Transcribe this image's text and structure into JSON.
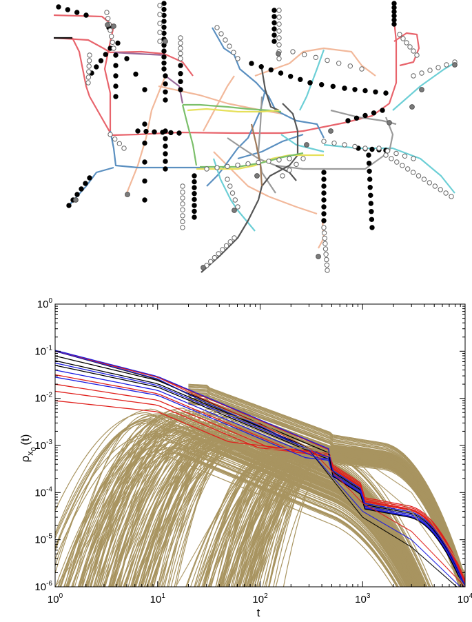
{
  "network_figure": {
    "description_colors": {
      "red": "#e8646c",
      "peach": "#f2b89a",
      "blue": "#5a8fc0",
      "cyan": "#6ccfd6",
      "gray": "#9a9a9a",
      "dark_gray": "#555555",
      "black": "#111111",
      "yellow": "#e6e05a",
      "green": "#7bbf6a",
      "purple": "#9a6a9a",
      "brown": "#a07a5a"
    },
    "node_fill_colors": {
      "black": "#000000",
      "white": "#ffffff",
      "gray": "#7a7a7a"
    }
  },
  "chart_data": {
    "type": "line",
    "xscale": "log",
    "yscale": "log",
    "xlim": [
      1,
      10000
    ],
    "ylim": [
      1e-06,
      1
    ],
    "xlabel": "t",
    "ylabel_main": "ρ",
    "ylabel_sub": "x",
    "ylabel_subsub": "0",
    "ylabel_arg": "(t)",
    "x_tick_labels": [
      {
        "base": "10",
        "exp": "0"
      },
      {
        "base": "10",
        "exp": "1"
      },
      {
        "base": "10",
        "exp": "2"
      },
      {
        "base": "10",
        "exp": "3"
      },
      {
        "base": "10",
        "exp": "4"
      }
    ],
    "y_tick_labels": [
      {
        "base": "10",
        "exp": "0"
      },
      {
        "base": "10",
        "exp": "-1"
      },
      {
        "base": "10",
        "exp": "-2"
      },
      {
        "base": "10",
        "exp": "-3"
      },
      {
        "base": "10",
        "exp": "-4"
      },
      {
        "base": "10",
        "exp": "-5"
      },
      {
        "base": "10",
        "exp": "-6"
      }
    ],
    "series_colors": {
      "khaki": "#a89460",
      "red": "#e0201c",
      "blue": "#1c1ce0",
      "black": "#000000"
    },
    "representative_series": [
      {
        "color": "black",
        "points": [
          [
            1,
            0.1
          ],
          [
            10,
            0.025
          ],
          [
            30,
            0.008
          ],
          [
            100,
            0.0025
          ],
          [
            300,
            0.0008
          ],
          [
            1000,
            3e-05
          ],
          [
            3000,
            7e-06
          ],
          [
            10000,
            7e-07
          ]
        ]
      },
      {
        "color": "red",
        "points": [
          [
            1,
            0.1
          ],
          [
            10,
            0.028
          ],
          [
            30,
            0.009
          ],
          [
            100,
            0.0028
          ],
          [
            300,
            0.0009
          ],
          [
            1000,
            6e-05
          ],
          [
            3000,
            1.5e-05
          ],
          [
            10000,
            1e-06
          ]
        ]
      },
      {
        "color": "blue",
        "points": [
          [
            1,
            0.1
          ],
          [
            10,
            0.026
          ],
          [
            30,
            0.008
          ],
          [
            100,
            0.0026
          ],
          [
            300,
            0.0008
          ],
          [
            1000,
            4e-05
          ],
          [
            3000,
            1e-05
          ],
          [
            10000,
            8e-07
          ]
        ]
      },
      {
        "color": "khaki",
        "points": [
          [
            1,
            1e-06
          ],
          [
            10,
            0.001
          ],
          [
            30,
            0.006
          ],
          [
            100,
            0.003
          ],
          [
            300,
            0.0009
          ],
          [
            1000,
            0.0003
          ],
          [
            3000,
            4e-05
          ],
          [
            10000,
            1e-06
          ]
        ]
      },
      {
        "color": "khaki",
        "points": [
          [
            15,
            1e-06
          ],
          [
            50,
            0.0001
          ],
          [
            100,
            0.0008
          ],
          [
            250,
            0.0009
          ],
          [
            1000,
            0.0005
          ],
          [
            3000,
            0.0001
          ],
          [
            10000,
            2e-06
          ]
        ]
      }
    ]
  }
}
